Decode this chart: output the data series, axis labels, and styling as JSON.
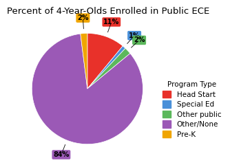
{
  "title": "Percent of 4-Year-Olds Enrolled in Public ECE",
  "labels": [
    "Head Start",
    "Special Ed",
    "Other public",
    "Other/None",
    "Pre-K"
  ],
  "values": [
    11,
    1,
    2,
    84,
    2
  ],
  "colors": [
    "#e8312a",
    "#4a90d9",
    "#5cb85c",
    "#9b59b6",
    "#f0a500"
  ],
  "legend_title": "Program Type",
  "startangle": 90,
  "title_fontsize": 9.5,
  "legend_fontsize": 7.5,
  "pct_distance": 1.25
}
